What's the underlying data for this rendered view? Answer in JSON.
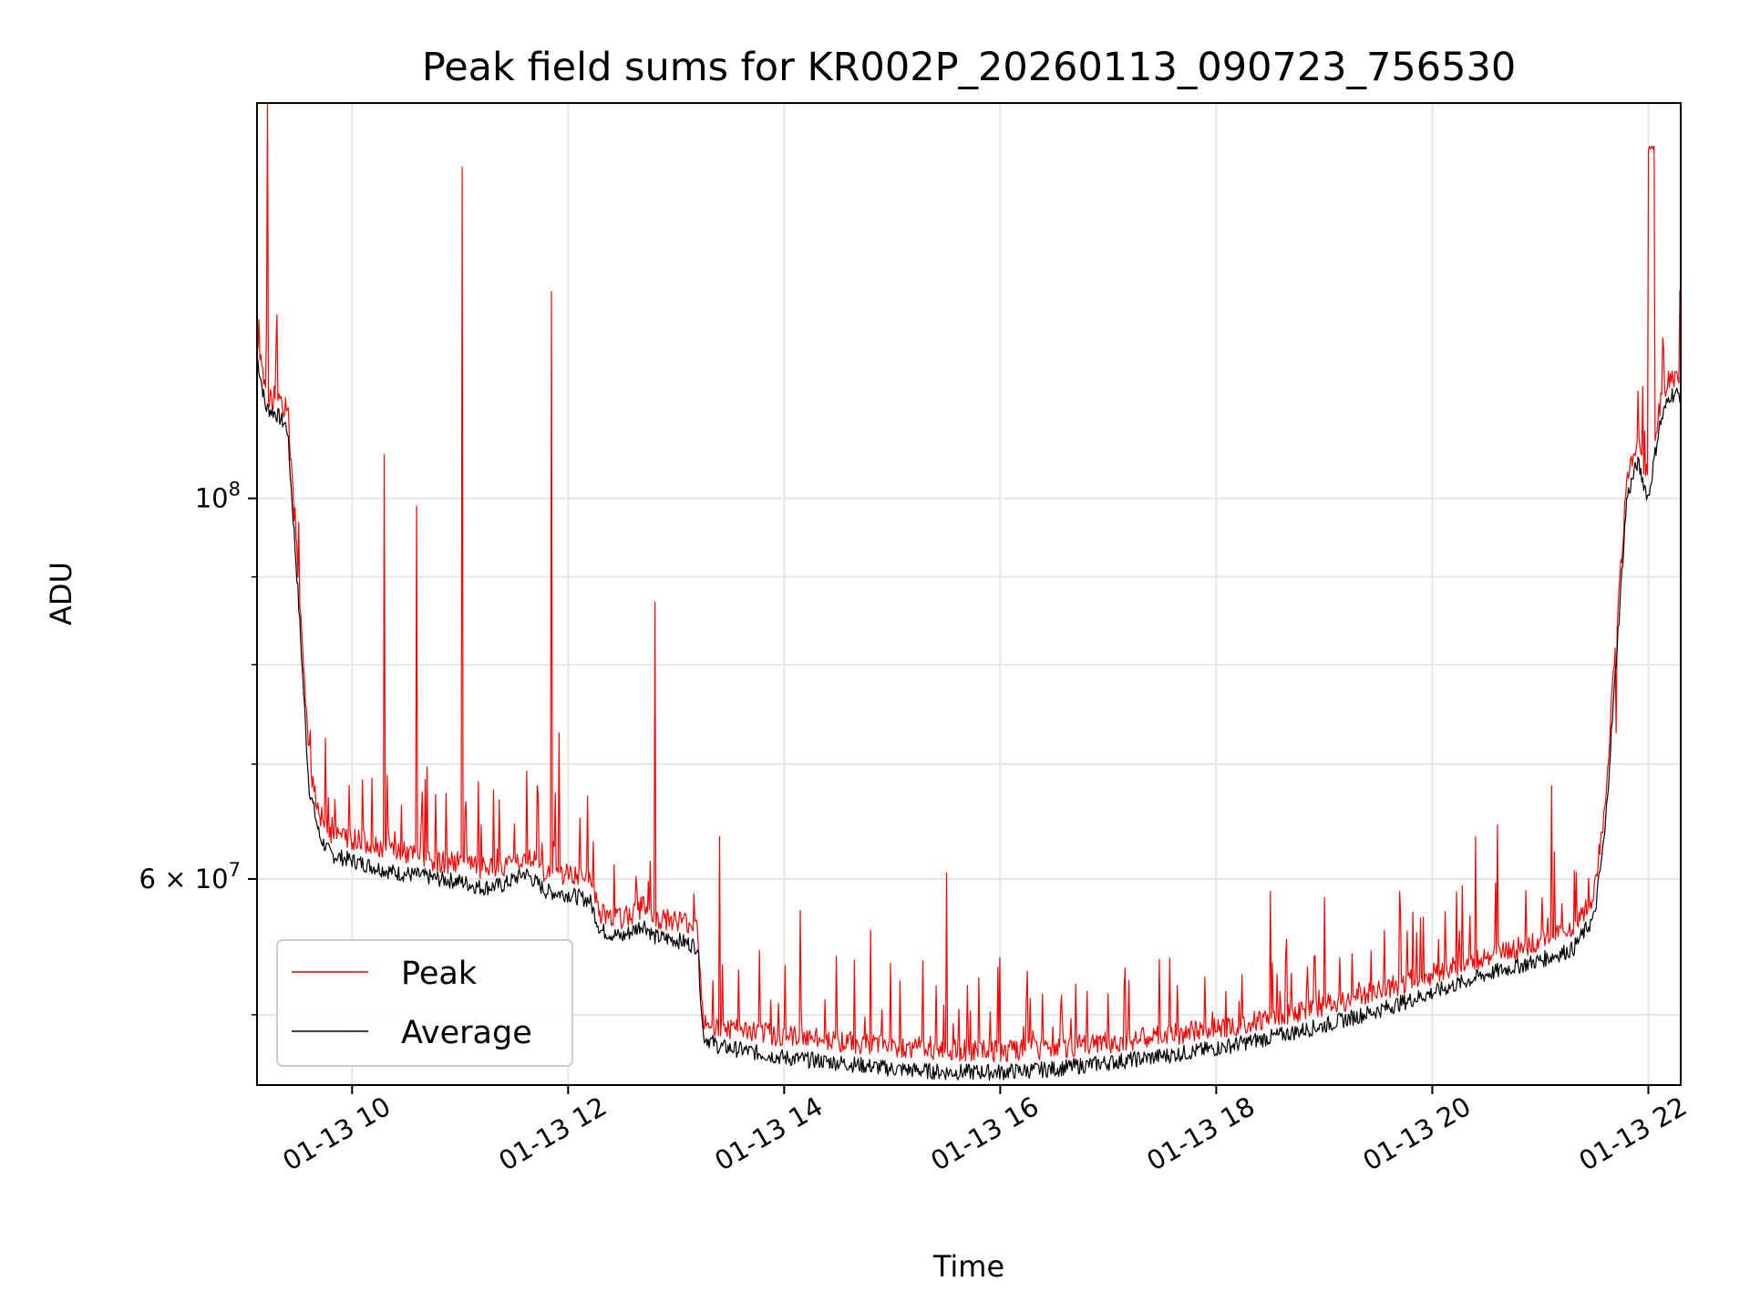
{
  "chart_data": {
    "type": "line",
    "title": "Peak field sums for KR002P_20260113_090723_756530",
    "xlabel": "Time",
    "ylabel": "ADU",
    "yscale": "log",
    "xlim": [
      9.12,
      22.3
    ],
    "ylim": [
      45500000,
      170000000
    ],
    "x_ticks": [
      {
        "value": 10,
        "label": "01-13 10"
      },
      {
        "value": 12,
        "label": "01-13 12"
      },
      {
        "value": 14,
        "label": "01-13 14"
      },
      {
        "value": 16,
        "label": "01-13 16"
      },
      {
        "value": 18,
        "label": "01-13 18"
      },
      {
        "value": 20,
        "label": "01-13 20"
      },
      {
        "value": 22,
        "label": "01-13 22"
      }
    ],
    "y_major_ticks": [
      {
        "value": 100000000,
        "base": "10",
        "exp": "8"
      },
      {
        "value": 60000000,
        "mantissa": "6",
        "times": "×",
        "base": "10",
        "exp": "7"
      }
    ],
    "y_minor_ticks": [
      50000000,
      70000000,
      80000000,
      90000000
    ],
    "grid": true,
    "legend": {
      "location": "lower-left"
    },
    "series": [
      {
        "name": "Peak",
        "color": "#ff0000",
        "x": [
          9.12,
          9.2,
          9.3,
          9.4,
          9.5,
          9.6,
          9.7,
          9.8,
          10.0,
          10.2,
          10.4,
          10.6,
          10.8,
          11.0,
          11.2,
          11.4,
          11.6,
          11.8,
          12.0,
          12.2,
          12.3,
          12.5,
          12.7,
          12.8,
          13.0,
          13.2,
          13.25,
          13.4,
          13.6,
          14.0,
          14.5,
          15.0,
          15.5,
          16.0,
          16.5,
          17.0,
          17.5,
          18.0,
          18.5,
          19.0,
          19.5,
          20.0,
          20.5,
          21.0,
          21.3,
          21.5,
          21.6,
          21.7,
          21.8,
          21.9,
          22.0,
          22.1,
          22.2,
          22.3
        ],
        "y": [
          123000000,
          114000000,
          113000000,
          112000000,
          90000000,
          70000000,
          65000000,
          63500000,
          63000000,
          62500000,
          62000000,
          61500000,
          61000000,
          61000000,
          60500000,
          60500000,
          61500000,
          60000000,
          60000000,
          59500000,
          57000000,
          56500000,
          57500000,
          56500000,
          56500000,
          56000000,
          49500000,
          48800000,
          48700000,
          48300000,
          48000000,
          47600000,
          47400000,
          47300000,
          47500000,
          47900000,
          48300000,
          48800000,
          49500000,
          50300000,
          51300000,
          52500000,
          53800000,
          54800000,
          55800000,
          58500000,
          66000000,
          82000000,
          102000000,
          107000000,
          102000000,
          112000000,
          117000000,
          117000000
        ]
      },
      {
        "name": "Average",
        "color": "#000000",
        "x": [
          9.12,
          9.2,
          9.3,
          9.4,
          9.5,
          9.6,
          9.7,
          9.8,
          10.0,
          10.2,
          10.4,
          10.6,
          10.8,
          11.0,
          11.2,
          11.4,
          11.6,
          11.8,
          12.0,
          12.2,
          12.3,
          12.5,
          12.7,
          12.8,
          13.0,
          13.2,
          13.25,
          13.4,
          13.6,
          14.0,
          14.5,
          15.0,
          15.5,
          16.0,
          16.5,
          17.0,
          17.5,
          18.0,
          18.5,
          19.0,
          19.5,
          20.0,
          20.5,
          21.0,
          21.3,
          21.5,
          21.6,
          21.7,
          21.8,
          21.9,
          22.0,
          22.1,
          22.2,
          22.3
        ],
        "y": [
          121000000,
          113000000,
          112000000,
          110000000,
          88000000,
          68000000,
          63500000,
          62000000,
          61500000,
          61000000,
          60500000,
          60300000,
          60000000,
          59800000,
          59300000,
          59500000,
          60500000,
          59000000,
          58800000,
          58300000,
          56000000,
          55500000,
          56500000,
          55500000,
          55300000,
          54800000,
          48600000,
          47900000,
          47700000,
          47200000,
          46900000,
          46500000,
          46300000,
          46300000,
          46500000,
          46900000,
          47300000,
          47800000,
          48500000,
          49300000,
          50300000,
          51500000,
          52800000,
          53800000,
          54600000,
          57000000,
          64000000,
          80000000,
          100000000,
          105000000,
          100000000,
          110000000,
          115000000,
          115000000
        ]
      }
    ],
    "spikes": [
      {
        "x": 9.22,
        "y": 170000000
      },
      {
        "x": 10.3,
        "y": 106000000
      },
      {
        "x": 10.6,
        "y": 99000000
      },
      {
        "x": 11.02,
        "y": 156000000
      },
      {
        "x": 11.85,
        "y": 132000000
      },
      {
        "x": 11.92,
        "y": 73000000
      },
      {
        "x": 12.8,
        "y": 87000000
      },
      {
        "x": 13.4,
        "y": 63500000
      },
      {
        "x": 14.15,
        "y": 57500000
      },
      {
        "x": 14.8,
        "y": 56000000
      },
      {
        "x": 15.5,
        "y": 60500000
      },
      {
        "x": 16.0,
        "y": 54000000
      },
      {
        "x": 16.25,
        "y": 53000000
      },
      {
        "x": 17.15,
        "y": 52000000
      },
      {
        "x": 18.5,
        "y": 59000000
      },
      {
        "x": 19.0,
        "y": 58500000
      },
      {
        "x": 19.7,
        "y": 59000000
      },
      {
        "x": 20.4,
        "y": 63500000
      },
      {
        "x": 20.6,
        "y": 64500000
      },
      {
        "x": 21.1,
        "y": 68000000
      },
      {
        "x": 21.7,
        "y": 73000000
      }
    ],
    "end_plateau": {
      "x_start": 22.0,
      "x_end": 22.06,
      "y": 160000000
    }
  }
}
